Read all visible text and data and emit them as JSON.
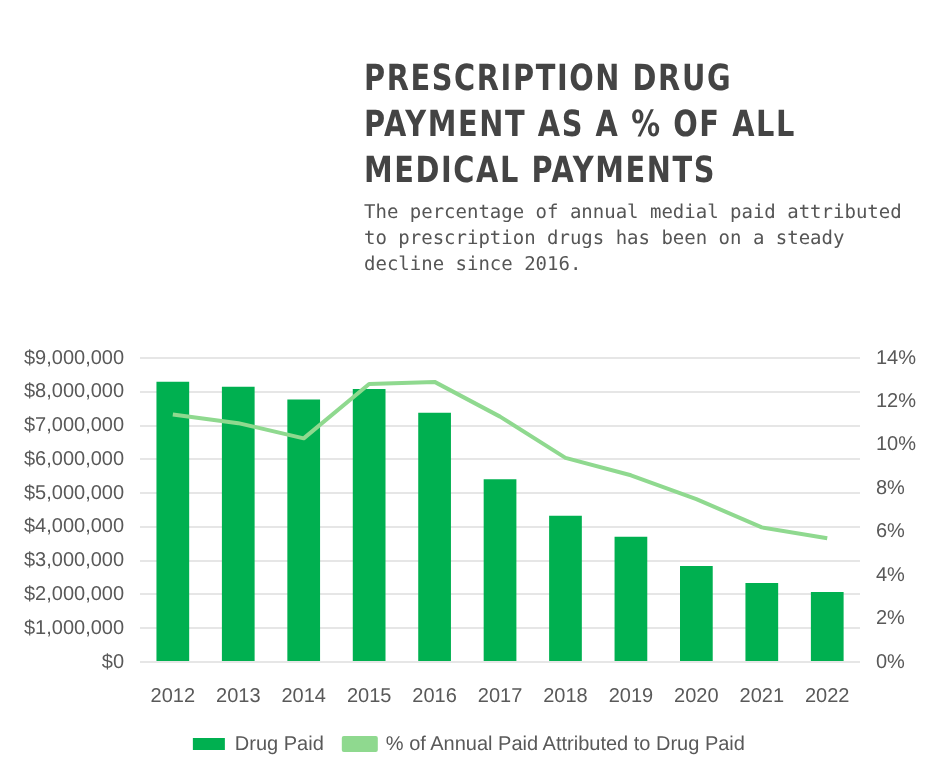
{
  "chart_data": {
    "type": "bar",
    "title": "PRESCRIPTION DRUG PAYMENT AS A % OF ALL MEDICAL PAYMENTS",
    "subtitle": "The percentage of annual medial paid attributed to prescription drugs has been on a steady decline since 2016.",
    "categories": [
      "2012",
      "2013",
      "2014",
      "2015",
      "2016",
      "2017",
      "2018",
      "2019",
      "2020",
      "2021",
      "2022"
    ],
    "series": [
      {
        "name": "Drug Paid",
        "color": "#00b050",
        "values": [
          8300000,
          8150000,
          7770000,
          8080000,
          7380000,
          5410000,
          4330000,
          3710000,
          2840000,
          2340000,
          2070000
        ]
      },
      {
        "name": "% of Annual Paid Attributed to Drug Paid",
        "type": "line",
        "axis": "y2",
        "color": "#8fd98f",
        "values": [
          11.4,
          11.0,
          10.3,
          12.8,
          12.9,
          11.3,
          9.4,
          8.6,
          7.5,
          6.2,
          5.7
        ]
      }
    ],
    "ylim": [
      0,
      9000000
    ],
    "yticks": [
      {
        "value": 0,
        "label": "$0"
      },
      {
        "value": 1000000,
        "label": "$1,000,000"
      },
      {
        "value": 2000000,
        "label": "$2,000,000"
      },
      {
        "value": 3000000,
        "label": "$3,000,000"
      },
      {
        "value": 4000000,
        "label": "$4,000,000"
      },
      {
        "value": 5000000,
        "label": "$5,000,000"
      },
      {
        "value": 6000000,
        "label": "$6,000,000"
      },
      {
        "value": 7000000,
        "label": "$7,000,000"
      },
      {
        "value": 8000000,
        "label": "$8,000,000"
      },
      {
        "value": 9000000,
        "label": "$9,000,000"
      }
    ],
    "y2lim": [
      0,
      14
    ],
    "y2ticks": [
      {
        "value": 0,
        "label": "0%"
      },
      {
        "value": 2,
        "label": "2%"
      },
      {
        "value": 4,
        "label": "4%"
      },
      {
        "value": 6,
        "label": "6%"
      },
      {
        "value": 8,
        "label": "8%"
      },
      {
        "value": 10,
        "label": "10%"
      },
      {
        "value": 12,
        "label": "12%"
      },
      {
        "value": 14,
        "label": "14%"
      }
    ],
    "grid": "y",
    "legend": "bottom",
    "marker": "none"
  }
}
